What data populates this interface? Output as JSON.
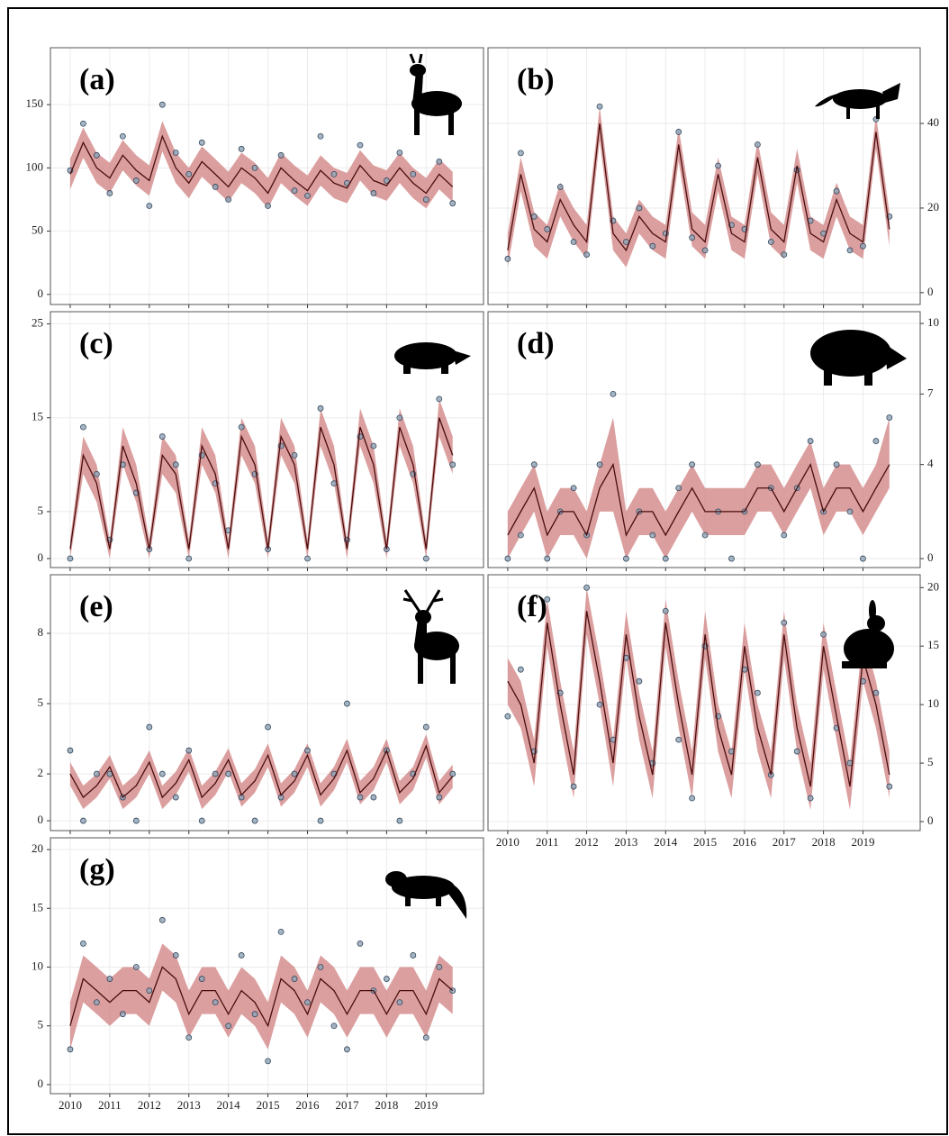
{
  "chart_data": [
    {
      "type": "line",
      "label": "(a)",
      "yaxis": "left",
      "x_tick_labels": false,
      "grid": true,
      "line_color": "#4a0d0d",
      "band_color": "#d07f7f",
      "point_color": "#8fa3b5",
      "xlim": [
        2009.5,
        2020.45
      ],
      "xticks": [
        2010,
        2011,
        2012,
        2013,
        2014,
        2015,
        2016,
        2017,
        2018,
        2019
      ],
      "ylim": [
        -8,
        195
      ],
      "yticks": [
        0,
        50,
        100,
        150
      ],
      "x": [
        2010,
        2010.33,
        2010.67,
        2011,
        2011.33,
        2011.67,
        2012,
        2012.33,
        2012.67,
        2013,
        2013.33,
        2013.67,
        2014,
        2014.33,
        2014.67,
        2015,
        2015.33,
        2015.67,
        2016,
        2016.33,
        2016.67,
        2017,
        2017.33,
        2017.67,
        2018,
        2018.33,
        2018.67,
        2019,
        2019.33,
        2019.67
      ],
      "fit": [
        95,
        120,
        100,
        92,
        110,
        98,
        90,
        125,
        100,
        88,
        105,
        95,
        85,
        100,
        92,
        80,
        100,
        90,
        82,
        98,
        88,
        84,
        102,
        90,
        86,
        100,
        88,
        80,
        95,
        85
      ],
      "band_lower": [
        83,
        108,
        88,
        80,
        98,
        86,
        78,
        113,
        88,
        76,
        93,
        83,
        73,
        88,
        80,
        68,
        88,
        78,
        70,
        86,
        76,
        72,
        90,
        78,
        74,
        88,
        76,
        68,
        83,
        73
      ],
      "band_upper": [
        107,
        132,
        112,
        104,
        122,
        110,
        102,
        137,
        112,
        100,
        117,
        107,
        97,
        112,
        104,
        92,
        112,
        102,
        94,
        110,
        100,
        96,
        114,
        102,
        98,
        112,
        100,
        92,
        107,
        97
      ],
      "observed": [
        98,
        135,
        110,
        80,
        125,
        90,
        70,
        150,
        112,
        95,
        120,
        85,
        75,
        115,
        100,
        70,
        110,
        82,
        78,
        125,
        95,
        88,
        118,
        80,
        90,
        112,
        95,
        75,
        105,
        72
      ]
    },
    {
      "type": "line",
      "label": "(b)",
      "yaxis": "right",
      "x_tick_labels": false,
      "grid": true,
      "line_color": "#4a0d0d",
      "band_color": "#d07f7f",
      "point_color": "#8fa3b5",
      "xlim": [
        2009.5,
        2020.45
      ],
      "xticks": [
        2010,
        2011,
        2012,
        2013,
        2014,
        2015,
        2016,
        2017,
        2018,
        2019
      ],
      "ylim": [
        -2.8,
        57.9
      ],
      "yticks": [
        0,
        20,
        40
      ],
      "x": [
        2010,
        2010.33,
        2010.67,
        2011,
        2011.33,
        2011.67,
        2012,
        2012.33,
        2012.67,
        2013,
        2013.33,
        2013.67,
        2014,
        2014.33,
        2014.67,
        2015,
        2015.33,
        2015.67,
        2016,
        2016.33,
        2016.67,
        2017,
        2017.33,
        2017.67,
        2018,
        2018.33,
        2018.67,
        2019,
        2019.33,
        2019.67
      ],
      "fit": [
        10,
        28,
        15,
        12,
        22,
        16,
        12,
        40,
        14,
        10,
        18,
        14,
        12,
        35,
        15,
        12,
        28,
        14,
        12,
        32,
        15,
        12,
        30,
        14,
        12,
        22,
        14,
        12,
        38,
        15
      ],
      "band_lower": [
        6,
        24,
        11,
        8,
        18,
        12,
        8,
        36,
        10,
        6,
        14,
        10,
        8,
        31,
        11,
        8,
        24,
        10,
        8,
        28,
        11,
        8,
        26,
        10,
        8,
        18,
        10,
        8,
        34,
        11
      ],
      "band_upper": [
        14,
        32,
        19,
        16,
        26,
        20,
        16,
        44,
        18,
        14,
        22,
        18,
        16,
        39,
        19,
        16,
        32,
        18,
        16,
        36,
        19,
        16,
        34,
        18,
        16,
        26,
        18,
        16,
        42,
        19
      ],
      "observed": [
        8,
        33,
        18,
        15,
        25,
        12,
        9,
        44,
        17,
        12,
        20,
        11,
        14,
        38,
        13,
        10,
        30,
        16,
        15,
        35,
        12,
        9,
        29,
        17,
        14,
        24,
        10,
        11,
        41,
        18
      ]
    },
    {
      "type": "line",
      "label": "(c)",
      "yaxis": "left",
      "x_tick_labels": false,
      "grid": true,
      "line_color": "#4a0d0d",
      "band_color": "#d07f7f",
      "point_color": "#8fa3b5",
      "xlim": [
        2009.5,
        2020.45
      ],
      "xticks": [
        2010,
        2011,
        2012,
        2013,
        2014,
        2015,
        2016,
        2017,
        2018,
        2019
      ],
      "ylim": [
        -0.96,
        26.3
      ],
      "yticks": [
        0,
        5,
        15,
        25
      ],
      "x": [
        2010,
        2010.33,
        2010.67,
        2011,
        2011.33,
        2011.67,
        2012,
        2012.33,
        2012.67,
        2013,
        2013.33,
        2013.67,
        2014,
        2014.33,
        2014.67,
        2015,
        2015.33,
        2015.67,
        2016,
        2016.33,
        2016.67,
        2017,
        2017.33,
        2017.67,
        2018,
        2018.33,
        2018.67,
        2019,
        2019.33,
        2019.67
      ],
      "fit": [
        1,
        11,
        8,
        1,
        12,
        8,
        1,
        11,
        9,
        1,
        12,
        9,
        1,
        13,
        10,
        1,
        13,
        10,
        1,
        14,
        10,
        1,
        14,
        10,
        1,
        14,
        10,
        1,
        15,
        11
      ],
      "band_lower": [
        0,
        9,
        6,
        0,
        10,
        6,
        0,
        9,
        7,
        0,
        10,
        7,
        0,
        11,
        8,
        0,
        11,
        8,
        0,
        12,
        8,
        0,
        12,
        8,
        0,
        12,
        8,
        0,
        13,
        9
      ],
      "band_upper": [
        2,
        13,
        10,
        2,
        14,
        10,
        2,
        13,
        11,
        2,
        14,
        11,
        2,
        15,
        12,
        2,
        15,
        12,
        2,
        16,
        12,
        2,
        16,
        12,
        2,
        16,
        12,
        2,
        17,
        13
      ],
      "observed": [
        0,
        14,
        9,
        2,
        10,
        7,
        1,
        13,
        10,
        0,
        11,
        8,
        3,
        14,
        9,
        1,
        12,
        11,
        0,
        16,
        8,
        2,
        13,
        12,
        1,
        15,
        9,
        0,
        17,
        10
      ]
    },
    {
      "type": "line",
      "label": "(d)",
      "yaxis": "right",
      "x_tick_labels": false,
      "grid": true,
      "line_color": "#4a0d0d",
      "band_color": "#d07f7f",
      "point_color": "#8fa3b5",
      "xlim": [
        2009.5,
        2020.45
      ],
      "xticks": [
        2010,
        2011,
        2012,
        2013,
        2014,
        2015,
        2016,
        2017,
        2018,
        2019
      ],
      "ylim": [
        -0.38,
        10.5
      ],
      "yticks": [
        0,
        4,
        7,
        10
      ],
      "x": [
        2010,
        2010.33,
        2010.67,
        2011,
        2011.33,
        2011.67,
        2012,
        2012.33,
        2012.67,
        2013,
        2013.33,
        2013.67,
        2014,
        2014.33,
        2014.67,
        2015,
        2015.33,
        2015.67,
        2016,
        2016.33,
        2016.67,
        2017,
        2017.33,
        2017.67,
        2018,
        2018.33,
        2018.67,
        2019,
        2019.33,
        2019.67
      ],
      "fit": [
        1,
        2,
        3,
        1,
        2,
        2,
        1,
        3,
        4,
        1,
        2,
        2,
        1,
        2,
        3,
        2,
        2,
        2,
        2,
        3,
        3,
        2,
        3,
        4,
        2,
        3,
        3,
        2,
        3,
        4
      ],
      "band_lower": [
        0,
        1,
        2,
        0,
        1,
        1,
        0,
        2,
        2,
        0,
        1,
        1,
        0,
        1,
        2,
        1,
        1,
        1,
        1,
        2,
        2,
        1,
        2,
        3,
        1,
        2,
        2,
        1,
        2,
        3
      ],
      "band_upper": [
        2,
        3,
        4,
        2,
        3,
        3,
        2,
        4,
        6,
        2,
        3,
        3,
        2,
        3,
        4,
        3,
        3,
        3,
        3,
        4,
        4,
        3,
        4,
        5,
        3,
        4,
        4,
        3,
        4,
        6
      ],
      "observed": [
        0,
        1,
        4,
        0,
        2,
        3,
        1,
        4,
        7,
        0,
        2,
        1,
        0,
        3,
        4,
        1,
        2,
        0,
        2,
        4,
        3,
        1,
        3,
        5,
        2,
        4,
        2,
        0,
        5,
        6
      ]
    },
    {
      "type": "line",
      "label": "(e)",
      "yaxis": "left",
      "x_tick_labels": false,
      "grid": true,
      "line_color": "#4a0d0d",
      "band_color": "#d07f7f",
      "point_color": "#8fa3b5",
      "xlim": [
        2009.5,
        2020.45
      ],
      "xticks": [
        2010,
        2011,
        2012,
        2013,
        2014,
        2015,
        2016,
        2017,
        2018,
        2019
      ],
      "ylim": [
        -0.42,
        10.5
      ],
      "yticks": [
        0,
        2,
        5,
        8
      ],
      "x": [
        2010,
        2010.33,
        2010.67,
        2011,
        2011.33,
        2011.67,
        2012,
        2012.33,
        2012.67,
        2013,
        2013.33,
        2013.67,
        2014,
        2014.33,
        2014.67,
        2015,
        2015.33,
        2015.67,
        2016,
        2016.33,
        2016.67,
        2017,
        2017.33,
        2017.67,
        2018,
        2018.33,
        2018.67,
        2019,
        2019.33,
        2019.67
      ],
      "fit": [
        2,
        1,
        1.5,
        2.3,
        1,
        1.5,
        2.5,
        1,
        1.6,
        2.6,
        1,
        1.6,
        2.6,
        1.1,
        1.7,
        2.8,
        1.1,
        1.7,
        2.8,
        1.1,
        1.8,
        3,
        1.2,
        1.8,
        3,
        1.2,
        1.8,
        3.2,
        1.2,
        1.9
      ],
      "band_lower": [
        1.5,
        0.5,
        1,
        1.8,
        0.5,
        1,
        2,
        0.5,
        1.1,
        2.1,
        0.5,
        1.1,
        2.1,
        0.6,
        1.2,
        2.3,
        0.6,
        1.2,
        2.3,
        0.6,
        1.3,
        2.5,
        0.7,
        1.3,
        2.5,
        0.7,
        1.3,
        2.7,
        0.7,
        1.4
      ],
      "band_upper": [
        2.5,
        1.5,
        2,
        2.8,
        1.5,
        2,
        3,
        1.5,
        2.1,
        3.1,
        1.5,
        2.1,
        3.1,
        1.6,
        2.2,
        3.3,
        1.6,
        2.2,
        3.3,
        1.6,
        2.3,
        3.5,
        1.7,
        2.3,
        3.5,
        1.7,
        2.3,
        3.7,
        1.7,
        2.4
      ],
      "observed": [
        3,
        0,
        2,
        2,
        1,
        0,
        4,
        2,
        1,
        3,
        0,
        2,
        2,
        1,
        0,
        4,
        1,
        2,
        3,
        0,
        2,
        5,
        1,
        1,
        3,
        0,
        2,
        4,
        1,
        2
      ]
    },
    {
      "type": "line",
      "label": "(f)",
      "yaxis": "right",
      "x_tick_labels": true,
      "grid": true,
      "line_color": "#4a0d0d",
      "band_color": "#d07f7f",
      "point_color": "#8fa3b5",
      "xlim": [
        2009.5,
        2020.45
      ],
      "xticks": [
        2010,
        2011,
        2012,
        2013,
        2014,
        2015,
        2016,
        2017,
        2018,
        2019
      ],
      "ylim": [
        -0.77,
        21.1
      ],
      "yticks": [
        0,
        5,
        10,
        15,
        20
      ],
      "x": [
        2010,
        2010.33,
        2010.67,
        2011,
        2011.33,
        2011.67,
        2012,
        2012.33,
        2012.67,
        2013,
        2013.33,
        2013.67,
        2014,
        2014.33,
        2014.67,
        2015,
        2015.33,
        2015.67,
        2016,
        2016.33,
        2016.67,
        2017,
        2017.33,
        2017.67,
        2018,
        2018.33,
        2018.67,
        2019,
        2019.33,
        2019.67
      ],
      "fit": [
        12,
        10,
        5,
        17,
        10,
        4,
        18,
        12,
        5,
        16,
        9,
        4,
        17,
        10,
        4,
        16,
        8,
        4,
        15,
        8,
        4,
        16,
        8,
        3,
        15,
        9,
        3,
        14,
        10,
        4
      ],
      "band_lower": [
        10,
        8,
        3,
        15,
        8,
        2,
        16,
        10,
        3,
        14,
        7,
        2,
        15,
        8,
        2,
        14,
        6,
        2,
        13,
        6,
        2,
        14,
        6,
        1,
        13,
        7,
        1,
        12,
        8,
        2
      ],
      "band_upper": [
        14,
        12,
        7,
        19,
        12,
        6,
        20,
        14,
        7,
        18,
        11,
        6,
        19,
        12,
        6,
        18,
        10,
        6,
        17,
        10,
        6,
        18,
        10,
        5,
        17,
        11,
        5,
        16,
        12,
        6
      ],
      "observed": [
        9,
        13,
        6,
        19,
        11,
        3,
        20,
        10,
        7,
        14,
        12,
        5,
        18,
        7,
        2,
        15,
        9,
        6,
        13,
        11,
        4,
        17,
        6,
        2,
        16,
        8,
        5,
        12,
        11,
        3
      ]
    },
    {
      "type": "line",
      "label": "(g)",
      "yaxis": "left",
      "x_tick_labels": true,
      "grid": true,
      "line_color": "#4a0d0d",
      "band_color": "#d07f7f",
      "point_color": "#8fa3b5",
      "xlim": [
        2009.5,
        2020.45
      ],
      "xticks": [
        2010,
        2011,
        2012,
        2013,
        2014,
        2015,
        2016,
        2017,
        2018,
        2019
      ],
      "ylim": [
        -0.77,
        21
      ],
      "yticks": [
        0,
        5,
        10,
        15,
        20
      ],
      "x": [
        2010,
        2010.33,
        2010.67,
        2011,
        2011.33,
        2011.67,
        2012,
        2012.33,
        2012.67,
        2013,
        2013.33,
        2013.67,
        2014,
        2014.33,
        2014.67,
        2015,
        2015.33,
        2015.67,
        2016,
        2016.33,
        2016.67,
        2017,
        2017.33,
        2017.67,
        2018,
        2018.33,
        2018.67,
        2019,
        2019.33,
        2019.67
      ],
      "fit": [
        5,
        9,
        8,
        7,
        8,
        8,
        7,
        10,
        9,
        6,
        8,
        8,
        6,
        8,
        7,
        5,
        9,
        8,
        6,
        9,
        8,
        6,
        8,
        8,
        6,
        8,
        8,
        6,
        9,
        8
      ],
      "band_lower": [
        3,
        7,
        6,
        5,
        6,
        6,
        5,
        8,
        7,
        4,
        6,
        6,
        4,
        6,
        5,
        3,
        7,
        6,
        4,
        7,
        6,
        4,
        6,
        6,
        4,
        6,
        6,
        4,
        7,
        6
      ],
      "band_upper": [
        7,
        11,
        10,
        9,
        10,
        10,
        9,
        12,
        11,
        8,
        10,
        10,
        8,
        10,
        9,
        7,
        11,
        10,
        8,
        11,
        10,
        8,
        10,
        10,
        8,
        10,
        10,
        8,
        11,
        10
      ],
      "observed": [
        3,
        12,
        7,
        9,
        6,
        10,
        8,
        14,
        11,
        4,
        9,
        7,
        5,
        11,
        6,
        2,
        13,
        9,
        7,
        10,
        5,
        3,
        12,
        8,
        9,
        7,
        11,
        4,
        10,
        8
      ]
    }
  ]
}
